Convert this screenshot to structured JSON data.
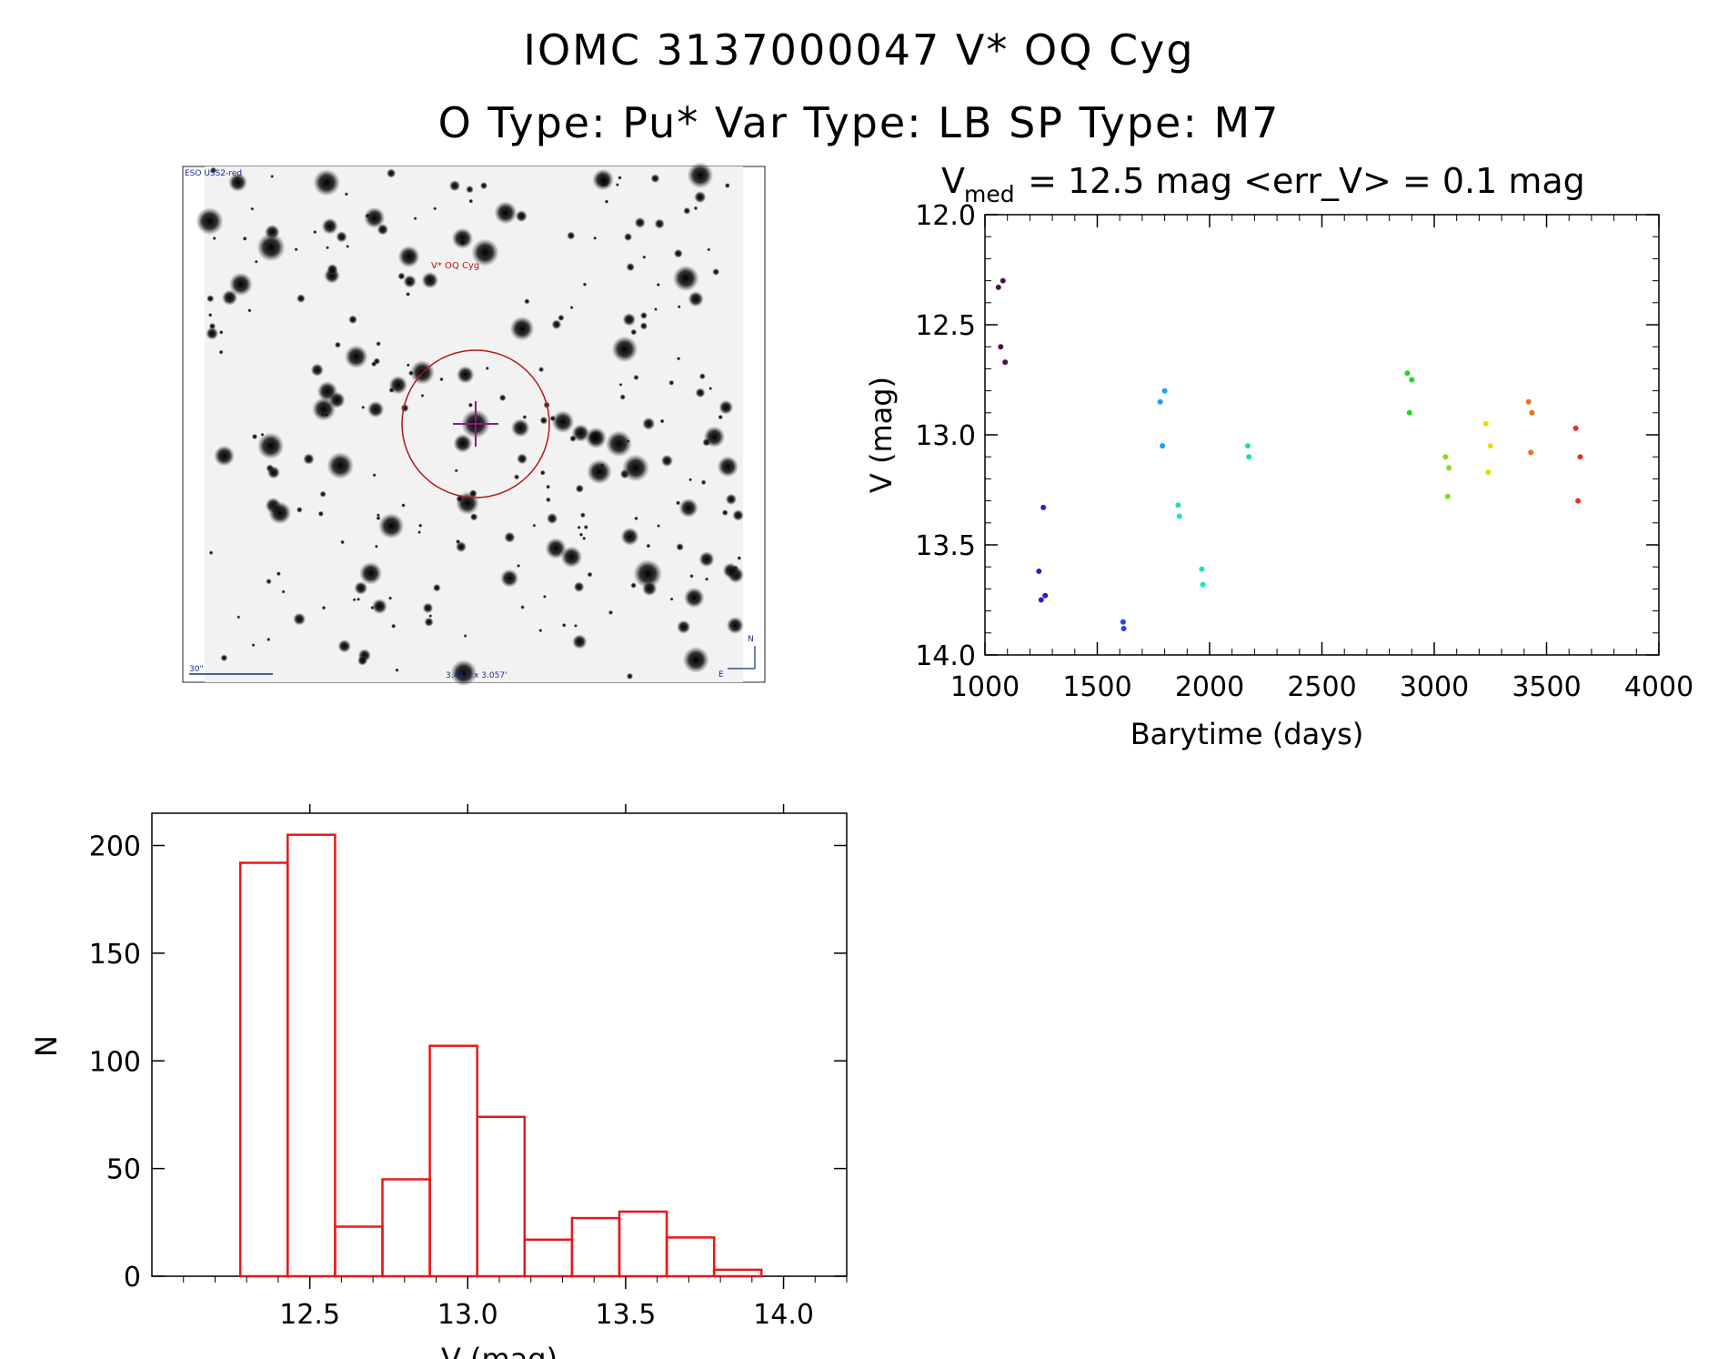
{
  "header": {
    "title": "IOMC 3137000047     V* OQ Cyg",
    "subtitle": "O Type: Pu*   Var Type: LB   SP Type: M7"
  },
  "image_panel": {
    "survey_label": "ESO USS2-red",
    "target_label": "V* OQ Cyg",
    "scale_label": "30\"",
    "fov_label": "3.447' x 3.057'",
    "north_label": "N",
    "east_label": "E"
  },
  "chart_data": [
    {
      "type": "scatter",
      "title_main": "V",
      "title_sub": "med",
      "title_rest": " = 12.5 mag <err_V> = 0.1 mag",
      "xlabel": "Barytime (days)",
      "ylabel": "V (mag)",
      "xlim": [
        1000,
        4000
      ],
      "ylim": [
        14.0,
        12.0
      ],
      "y_inverted": true,
      "xticks": [
        1000,
        1500,
        2000,
        2500,
        3000,
        3500,
        4000
      ],
      "yticks": [
        12.0,
        12.5,
        13.0,
        13.5,
        14.0
      ],
      "groups": [
        {
          "color": "#4b1050",
          "x": [
            1060,
            1070,
            1080,
            1090
          ],
          "y": [
            12.33,
            12.6,
            12.3,
            12.67
          ]
        },
        {
          "color": "#2a1fcc",
          "x": [
            1240,
            1250,
            1260,
            1268
          ],
          "y": [
            13.62,
            13.75,
            13.33,
            13.73
          ]
        },
        {
          "color": "#2f3fe0",
          "x": [
            1615,
            1618
          ],
          "y": [
            13.85,
            13.88
          ]
        },
        {
          "color": "#1aa0f0",
          "x": [
            1780,
            1790,
            1800
          ],
          "y": [
            12.85,
            13.05,
            12.8
          ]
        },
        {
          "color": "#20e0c0",
          "x": [
            1860,
            1865
          ],
          "y": [
            13.32,
            13.37
          ]
        },
        {
          "color": "#20e0c0",
          "x": [
            1965,
            1970
          ],
          "y": [
            13.61,
            13.68
          ]
        },
        {
          "color": "#20e0a0",
          "x": [
            2170,
            2175
          ],
          "y": [
            13.05,
            13.1
          ]
        },
        {
          "color": "#20d820",
          "x": [
            2880,
            2890,
            2900
          ],
          "y": [
            12.72,
            12.9,
            12.75
          ]
        },
        {
          "color": "#80e020",
          "x": [
            3050,
            3060,
            3065
          ],
          "y": [
            13.1,
            13.28,
            13.15
          ]
        },
        {
          "color": "#e0e000",
          "x": [
            3230,
            3240,
            3250
          ],
          "y": [
            12.95,
            13.17,
            13.05
          ]
        },
        {
          "color": "#f07020",
          "x": [
            3420,
            3430,
            3435
          ],
          "y": [
            12.85,
            13.08,
            12.9
          ]
        },
        {
          "color": "#e83020",
          "x": [
            3630,
            3640,
            3650
          ],
          "y": [
            12.97,
            13.3,
            13.1
          ]
        }
      ]
    },
    {
      "type": "bar",
      "subtype": "histogram",
      "xlabel": "V (mag)",
      "ylabel": "N",
      "xlim": [
        12.0,
        14.2
      ],
      "ylim": [
        0,
        215
      ],
      "xticks": [
        12.5,
        13.0,
        13.5,
        14.0
      ],
      "yticks": [
        0,
        50,
        100,
        150,
        200
      ],
      "bin_edges": [
        12.28,
        12.43,
        12.58,
        12.73,
        12.88,
        13.03,
        13.18,
        13.33,
        13.48,
        13.63,
        13.78,
        13.93
      ],
      "values": [
        192,
        205,
        23,
        45,
        107,
        74,
        17,
        27,
        30,
        18,
        3
      ],
      "color": "#e81818"
    }
  ]
}
